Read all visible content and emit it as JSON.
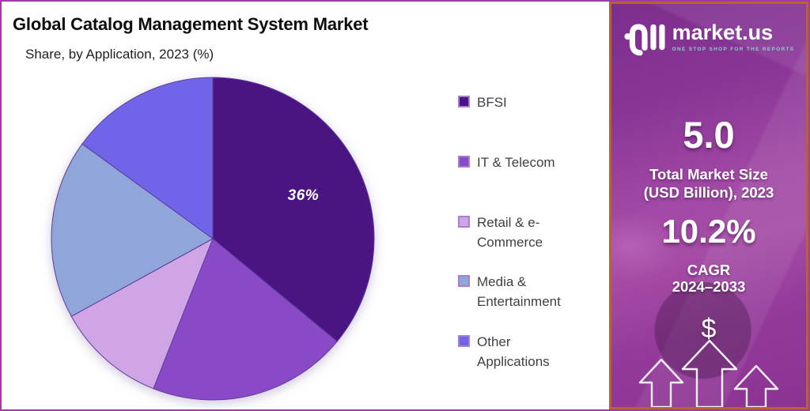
{
  "header": {
    "title": "Global Catalog Management System Market",
    "subtitle": "Share, by Application, 2023 (%)"
  },
  "chart_data": {
    "type": "pie",
    "title": "Global Catalog Management System Market",
    "subtitle": "Share, by Application, 2023 (%)",
    "unit": "%",
    "direction": "clockwise",
    "start_angle_deg": 0,
    "legend_position": "right",
    "labels": [
      "BFSI",
      "IT & Telecom",
      "Retail & e-Commerce",
      "Media & Entertainment",
      "Other Applications"
    ],
    "values": [
      36,
      20,
      11,
      18,
      15
    ],
    "colors": [
      "#4A1582",
      "#8A4AC8",
      "#CFA5E6",
      "#90A5D9",
      "#7064E8"
    ],
    "value_labels": [
      "36%",
      "",
      "",
      "",
      ""
    ],
    "slice_border_color": "#5B3E9E",
    "legend_swatch_border_color": "#A77FD0"
  },
  "sidebar": {
    "logo": {
      "brand": "market.us",
      "tagline": "ONE STOP SHOP FOR THE REPORTS"
    },
    "stats": [
      {
        "value": "5.0",
        "caption_line1": "Total Market Size",
        "caption_line2": "(USD Billion), 2023"
      },
      {
        "value": "10.2%",
        "caption_line1": "CAGR",
        "caption_line2": "2024–2033"
      }
    ],
    "dollar_symbol": "$"
  },
  "colors": {
    "page_border": "#A13AA2",
    "panel_border": "#B4652C",
    "brand_purple": "#8B3392",
    "tagline_teal": "#8CCFC6"
  }
}
